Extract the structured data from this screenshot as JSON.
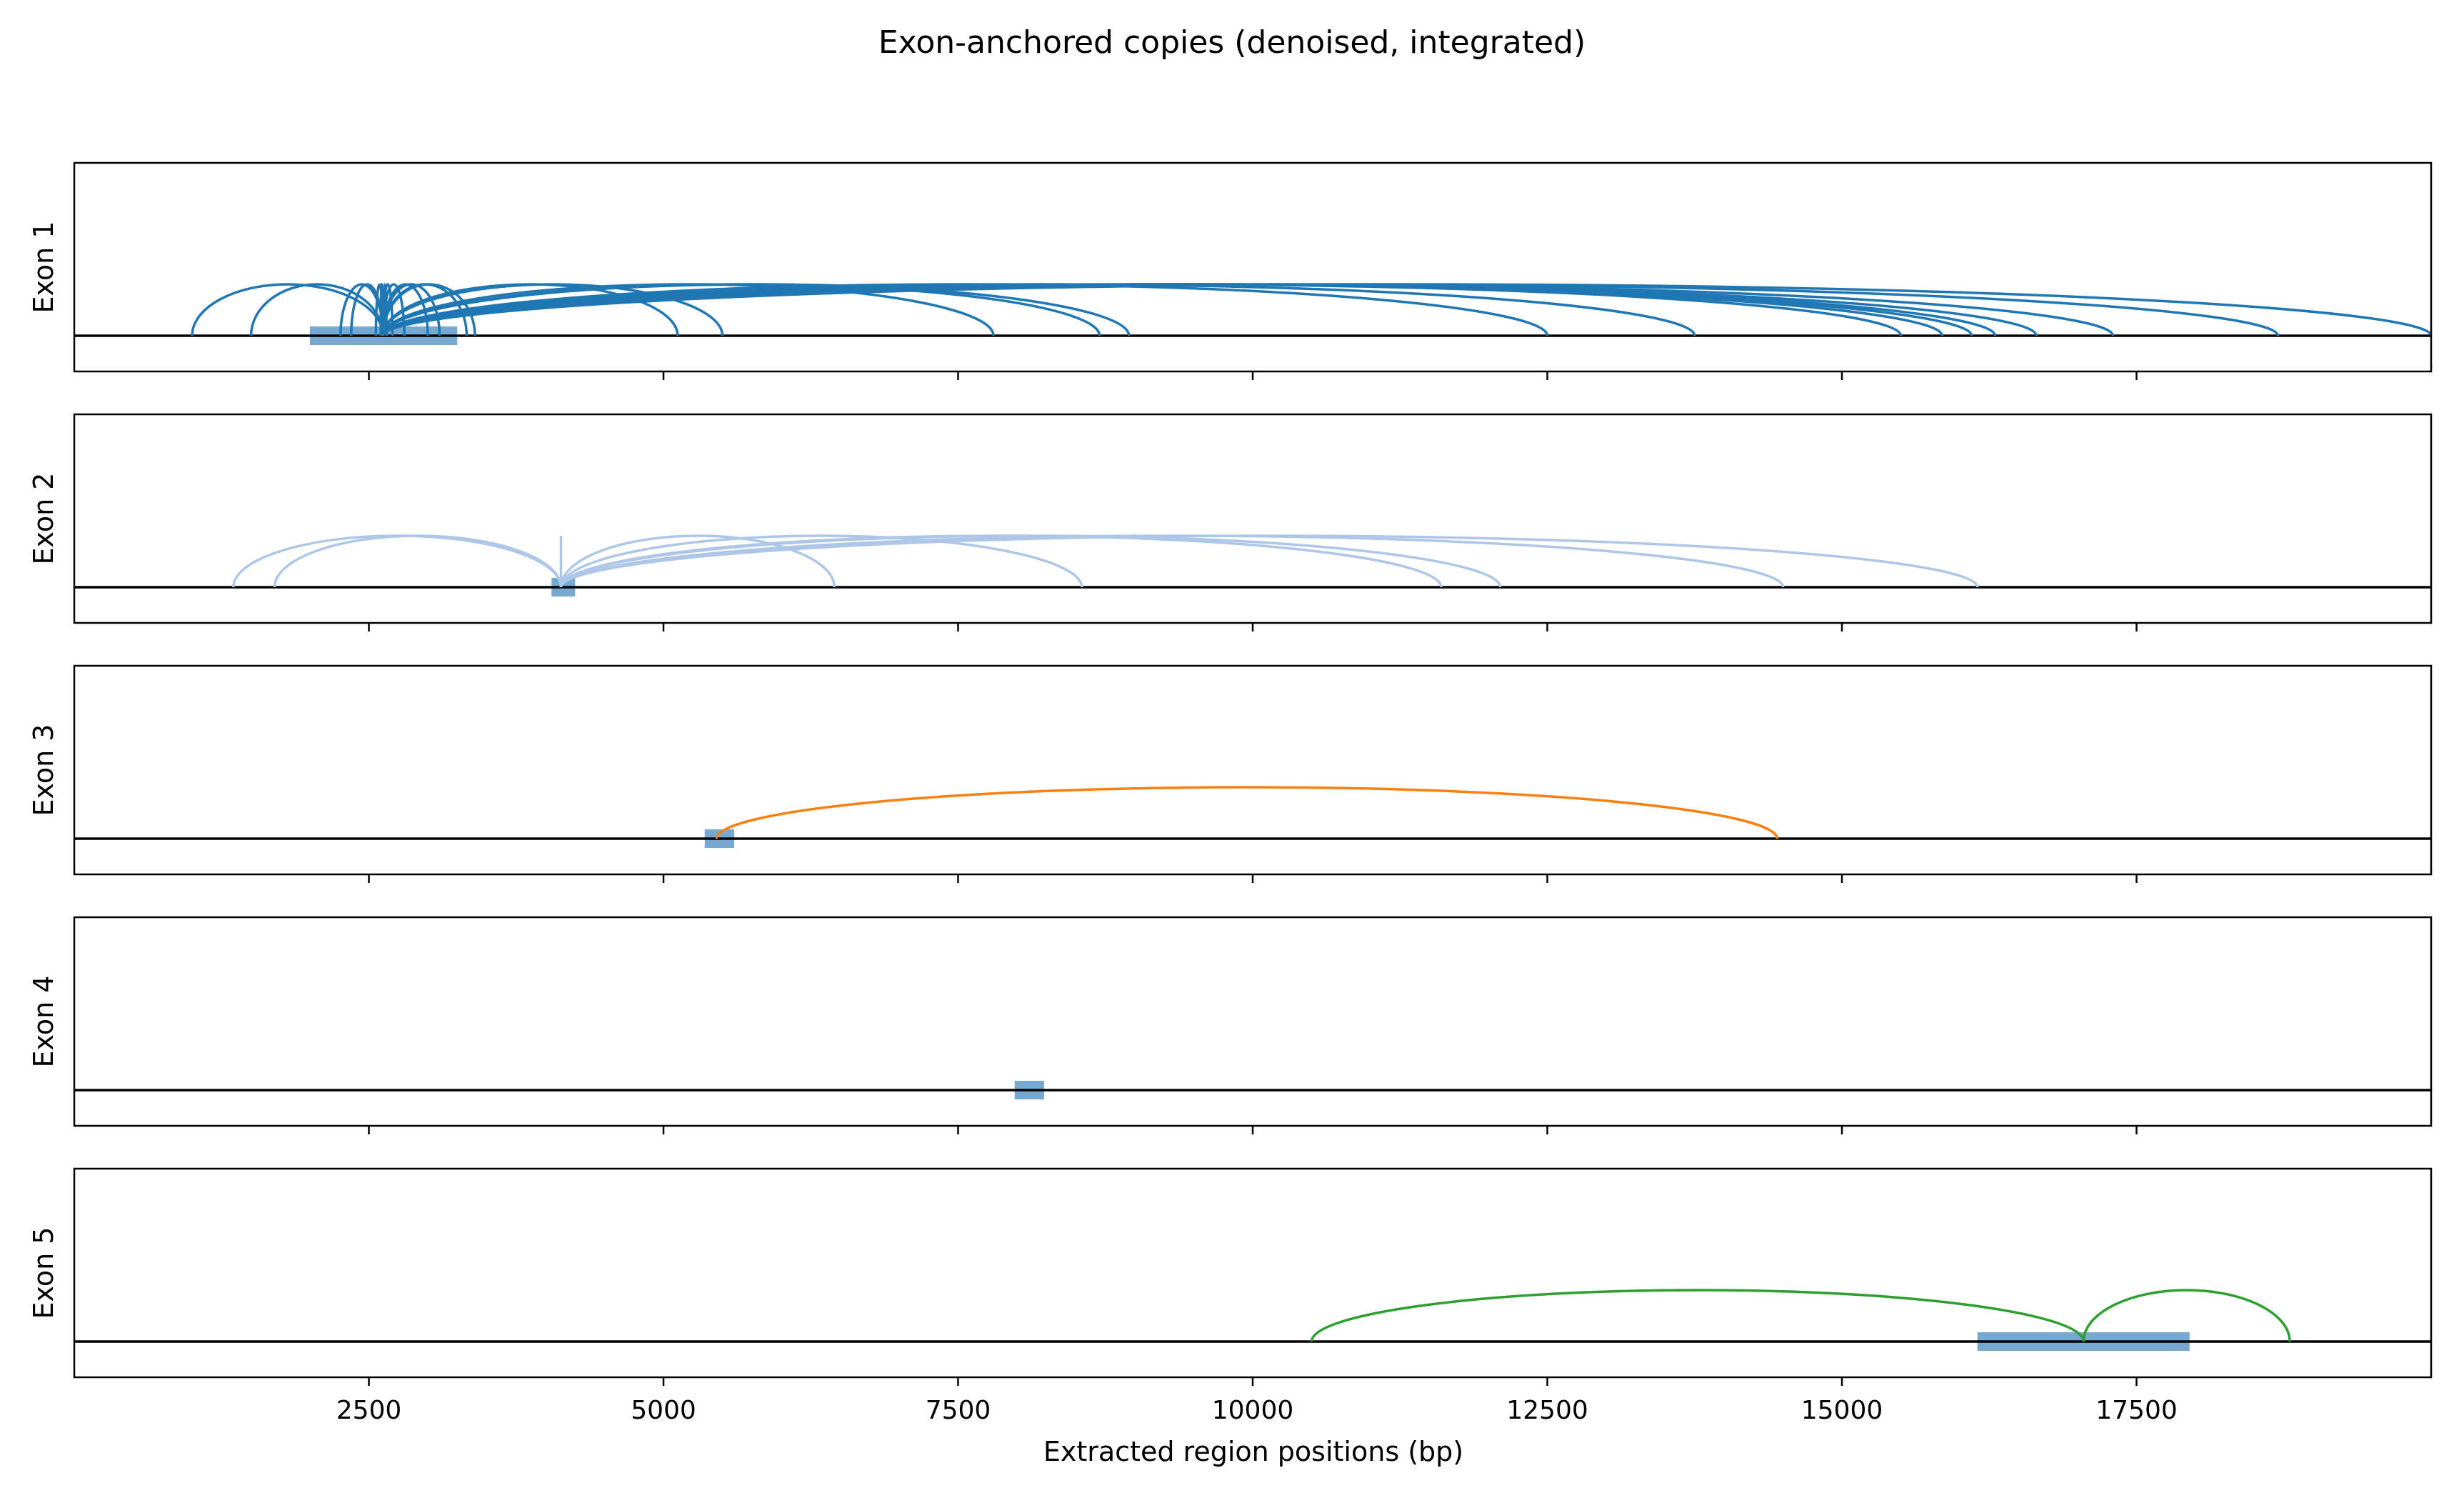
{
  "chart_data": {
    "type": "line",
    "title": "Exon-anchored copies (denoised, integrated)",
    "xlabel": "Extracted region positions (bp)",
    "xlim": [
      0,
      20000
    ],
    "xticks": [
      2500,
      5000,
      7500,
      10000,
      12500,
      15000,
      17500
    ],
    "xtick_labels": [
      "2500",
      "5000",
      "7500",
      "10000",
      "12500",
      "15000",
      "17500"
    ],
    "grid": false,
    "legend": "none",
    "panels": [
      {
        "ylabel": "Exon 1",
        "color": "#1f77b4",
        "exon": {
          "start": 2000,
          "end": 3250
        },
        "anchor": 2620,
        "arc_targets": [
          1000,
          1500,
          2260,
          2350,
          2560,
          2600,
          2650,
          2700,
          2800,
          3000,
          3100,
          3330,
          3400,
          5120,
          5500,
          7800,
          8700,
          8950,
          12500,
          13750,
          15500,
          15850,
          16100,
          16300,
          16650,
          17300,
          18700,
          20000
        ]
      },
      {
        "ylabel": "Exon 2",
        "color": "#aec7e8",
        "exon": {
          "start": 4050,
          "end": 4250
        },
        "anchor": 4130,
        "arc_targets": [
          1350,
          1700,
          4130,
          6450,
          8550,
          11600,
          12100,
          14500,
          16150
        ]
      },
      {
        "ylabel": "Exon 3",
        "color": "#ff7f0e",
        "exon": {
          "start": 5350,
          "end": 5600
        },
        "anchor": 5450,
        "arc_targets": [
          14450
        ]
      },
      {
        "ylabel": "Exon 4",
        "color": "#1f77b4",
        "exon": {
          "start": 7980,
          "end": 8230
        },
        "anchor": 8100,
        "arc_targets": []
      },
      {
        "ylabel": "Exon 5",
        "color": "#2ca02c",
        "exon": {
          "start": 16150,
          "end": 17950
        },
        "anchor": 17050,
        "arc_targets": [
          10500,
          18800
        ]
      }
    ]
  },
  "colors": {
    "exon_bar": "#76a9d1",
    "baseline": "#000000",
    "frame": "#000000"
  }
}
